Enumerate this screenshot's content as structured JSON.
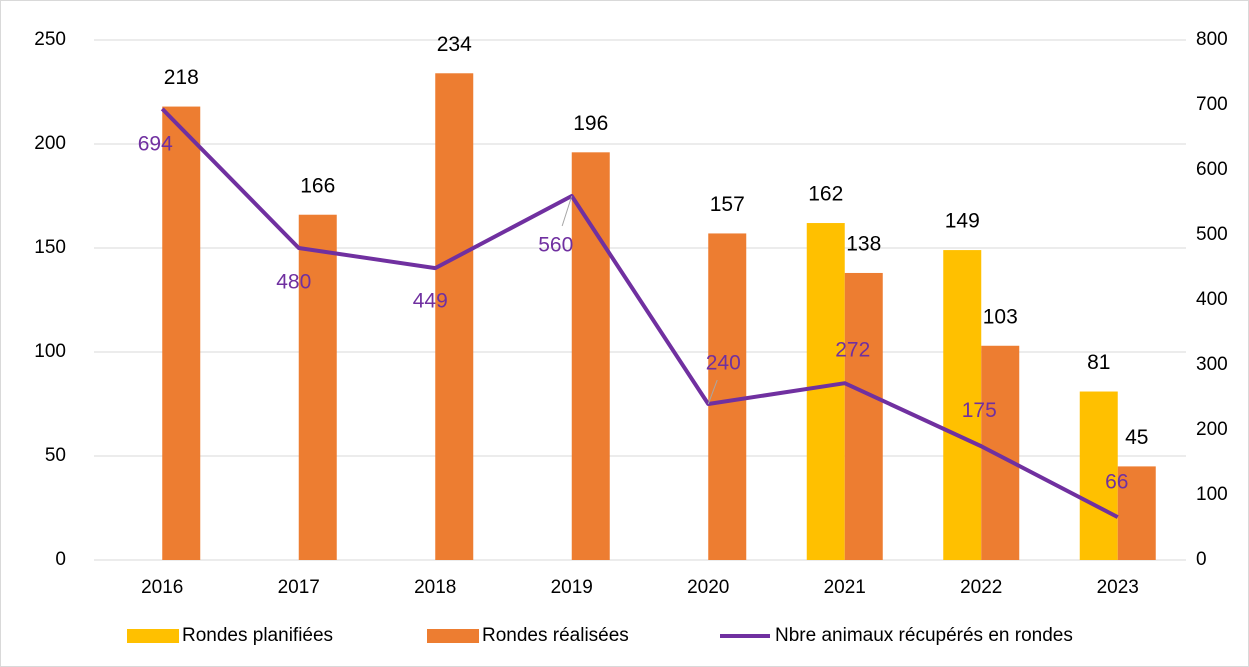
{
  "chart_data": {
    "type": "bar_line",
    "categories": [
      "2016",
      "2017",
      "2018",
      "2019",
      "2020",
      "2021",
      "2022",
      "2023"
    ],
    "series": [
      {
        "name": "Rondes planifiées",
        "color": "#ffc000",
        "type": "bar",
        "values": [
          null,
          null,
          null,
          null,
          null,
          162,
          149,
          81
        ]
      },
      {
        "name": "Rondes réalisées",
        "color": "#ed7d31",
        "type": "bar",
        "values": [
          218,
          166,
          234,
          196,
          157,
          138,
          103,
          45
        ]
      },
      {
        "name": "Nbre animaux récupérés en rondes",
        "color": "#7030a0",
        "type": "line",
        "axis": "y2",
        "values": [
          694,
          480,
          449,
          560,
          240,
          272,
          175,
          66
        ]
      }
    ],
    "ylim": [
      0,
      250
    ],
    "yticks": [
      0,
      50,
      100,
      150,
      200,
      250
    ],
    "y2lim": [
      0,
      800
    ],
    "y2ticks": [
      0,
      100,
      200,
      300,
      400,
      500,
      600,
      700,
      800
    ],
    "grid": true,
    "legend": "bottom"
  }
}
